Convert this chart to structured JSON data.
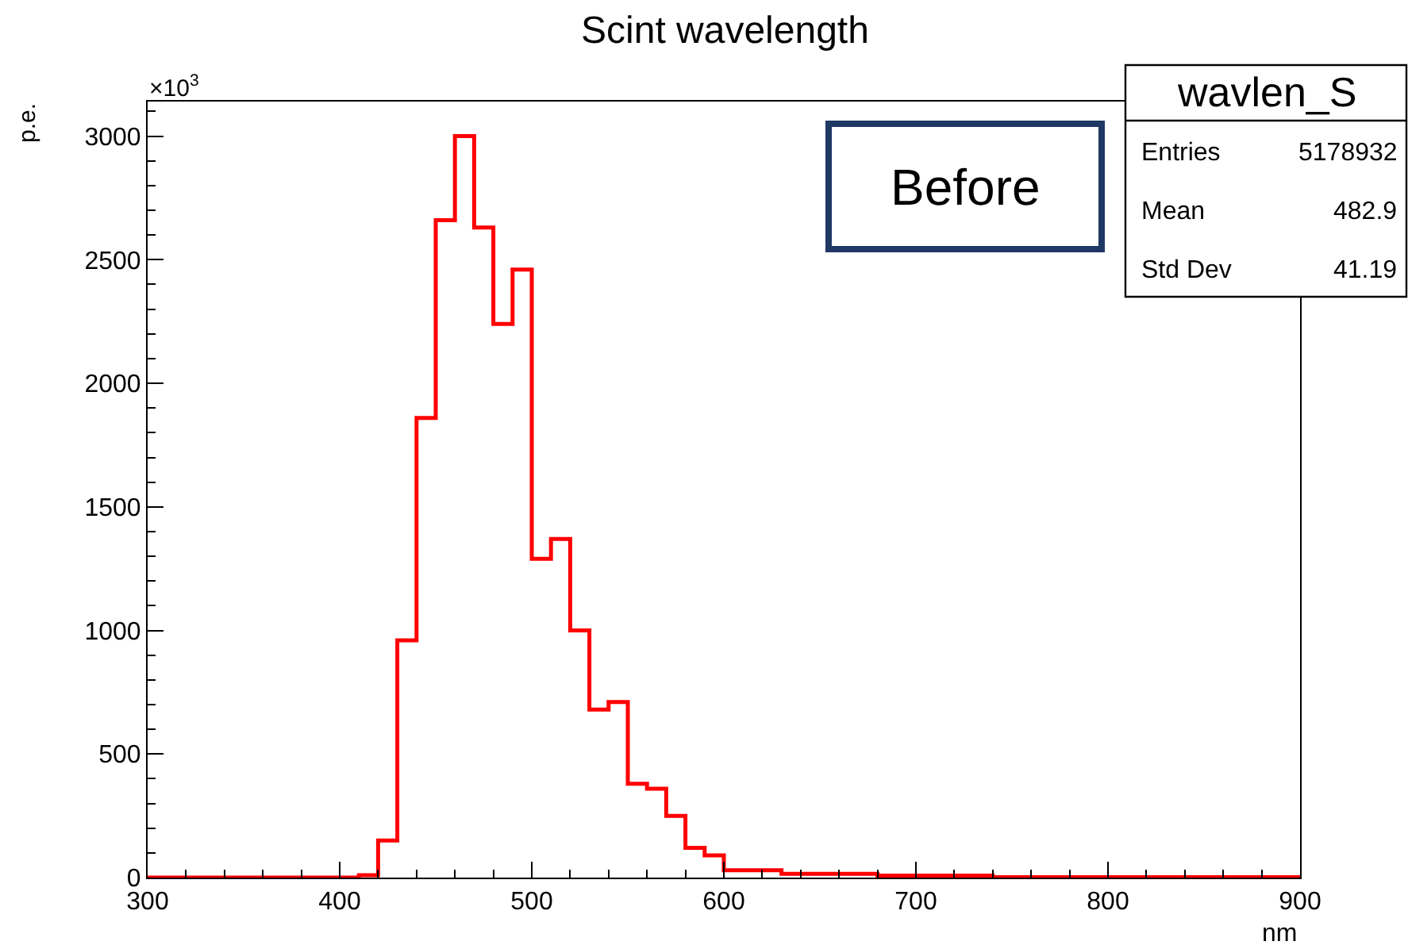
{
  "chart_data": {
    "type": "histogram",
    "title": "Scint wavelength",
    "xlabel": "nm",
    "ylabel": "p.e.",
    "bins": [
      300,
      310,
      320,
      330,
      340,
      350,
      360,
      370,
      380,
      390,
      400,
      410,
      420,
      430,
      440,
      450,
      460,
      470,
      480,
      490,
      500,
      510,
      520,
      530,
      540,
      550,
      560,
      570,
      580,
      590,
      600,
      610,
      620,
      630,
      640,
      650,
      660,
      670,
      680,
      690,
      700,
      710,
      720,
      730,
      740,
      750,
      760,
      770,
      780,
      790,
      800,
      810,
      820,
      830,
      840,
      850,
      860,
      870,
      880,
      890,
      900
    ],
    "values": [
      0,
      0,
      0,
      0,
      0,
      0,
      0,
      0,
      0,
      0,
      0,
      10,
      150,
      960,
      1860,
      2660,
      3000,
      2630,
      2240,
      2460,
      1290,
      1370,
      1000,
      680,
      710,
      380,
      360,
      250,
      120,
      90,
      30,
      30,
      30,
      15,
      15,
      15,
      15,
      15,
      8,
      8,
      8,
      8,
      8,
      8,
      2,
      2,
      2,
      2,
      2,
      2,
      2,
      2,
      2,
      2,
      2,
      2,
      2,
      2,
      2,
      2
    ],
    "color": "#ff0000",
    "xlim": [
      300,
      900
    ],
    "xticks": [
      300,
      400,
      500,
      600,
      700,
      800,
      900
    ],
    "ylim": [
      0,
      3140
    ],
    "yticks": [
      0,
      500,
      1000,
      1500,
      2000,
      2500,
      3000
    ],
    "annotations": [
      "×10$^{3}$",
      "Before",
      "wavlen_S",
      "Entries",
      "5178932",
      "Mean",
      "482.9",
      "Std Dev",
      "41.19"
    ]
  }
}
